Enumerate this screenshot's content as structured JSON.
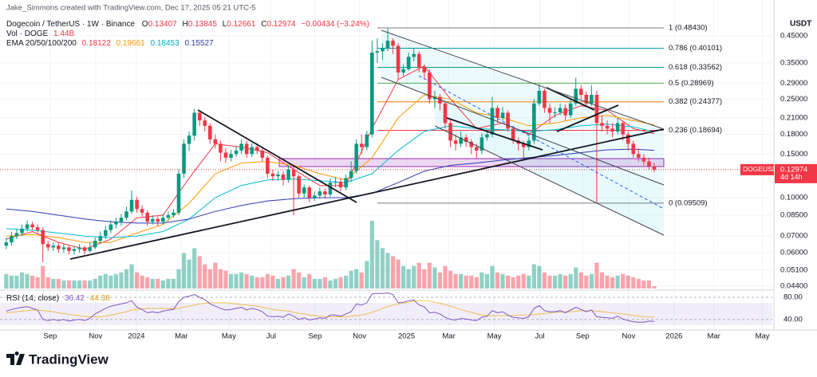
{
  "header": {
    "credit": "Jake_Simmons created with TradingView.com, Dec 17, 2025 05:21 UTC-5",
    "symbol": "Dogecoin / TetherUS · 1W · Binance",
    "ohlc_letters": [
      "O",
      "H",
      "L",
      "C"
    ],
    "change": "−0.00434 (−3.24%)",
    "brand": "TradingView"
  },
  "chart_data": {
    "type": "candlestick",
    "y_unit": "USDT",
    "log_scale": true,
    "up_color": "#089981",
    "down_color": "#f23645",
    "ylim": [
      0.043,
      0.51
    ],
    "yticks": [
      {
        "value": 0.45,
        "label": "0.45000"
      },
      {
        "value": 0.35,
        "label": "0.35000"
      },
      {
        "value": 0.29,
        "label": "0.29000"
      },
      {
        "value": 0.25,
        "label": "0.25000"
      },
      {
        "value": 0.21,
        "label": "0.21000"
      },
      {
        "value": 0.18,
        "label": "0.18000"
      },
      {
        "value": 0.15,
        "label": "0.15000"
      },
      {
        "value": 0.1,
        "label": "0.10000"
      },
      {
        "value": 0.085,
        "label": "0.08500"
      },
      {
        "value": 0.07,
        "label": "0.07000"
      },
      {
        "value": 0.06,
        "label": "0.06000"
      },
      {
        "value": 0.051,
        "label": "0.05100"
      },
      {
        "value": 0.044,
        "label": "0.04400"
      }
    ],
    "xlim": [
      -1.2,
      146.6
    ],
    "xticks": [
      {
        "value": 8.4,
        "label": "Sep"
      },
      {
        "value": 17.1,
        "label": "Nov"
      },
      {
        "value": 24.9,
        "label": "2024"
      },
      {
        "value": 33.5,
        "label": "Mar"
      },
      {
        "value": 42.6,
        "label": "May"
      },
      {
        "value": 50.7,
        "label": "Jul"
      },
      {
        "value": 59.1,
        "label": "Sep"
      },
      {
        "value": 67.6,
        "label": "Nov"
      },
      {
        "value": 76.6,
        "label": "2025"
      },
      {
        "value": 84.7,
        "label": "Mar"
      },
      {
        "value": 93.4,
        "label": "May"
      },
      {
        "value": 102.1,
        "label": "Jul"
      },
      {
        "value": 110.3,
        "label": "Sep"
      },
      {
        "value": 119.1,
        "label": "Nov"
      },
      {
        "value": 127.8,
        "label": "2026"
      },
      {
        "value": 135.4,
        "label": "Mar"
      },
      {
        "value": 144.7,
        "label": "May"
      }
    ],
    "open": [
      0.064,
      0.066,
      0.07,
      0.072,
      0.075,
      0.078,
      0.076,
      0.074,
      0.065,
      0.063,
      0.064,
      0.062,
      0.063,
      0.061,
      0.062,
      0.063,
      0.061,
      0.063,
      0.067,
      0.07,
      0.074,
      0.078,
      0.08,
      0.083,
      0.088,
      0.098,
      0.09,
      0.087,
      0.08,
      0.082,
      0.08,
      0.083,
      0.085,
      0.087,
      0.125,
      0.165,
      0.178,
      0.22,
      0.205,
      0.195,
      0.172,
      0.165,
      0.152,
      0.145,
      0.15,
      0.155,
      0.165,
      0.15,
      0.16,
      0.155,
      0.145,
      0.125,
      0.122,
      0.124,
      0.118,
      0.13,
      0.122,
      0.104,
      0.11,
      0.1,
      0.102,
      0.106,
      0.103,
      0.115,
      0.116,
      0.11,
      0.12,
      0.128,
      0.165,
      0.16,
      0.18,
      0.385,
      0.39,
      0.4,
      0.43,
      0.41,
      0.32,
      0.33,
      0.37,
      0.38,
      0.335,
      0.32,
      0.25,
      0.255,
      0.24,
      0.2,
      0.17,
      0.165,
      0.175,
      0.168,
      0.16,
      0.155,
      0.175,
      0.18,
      0.23,
      0.21,
      0.22,
      0.19,
      0.17,
      0.165,
      0.16,
      0.17,
      0.24,
      0.27,
      0.23,
      0.22,
      0.221,
      0.23,
      0.215,
      0.24,
      0.275,
      0.26,
      0.24,
      0.26,
      0.2,
      0.195,
      0.19,
      0.185,
      0.2,
      0.18,
      0.165,
      0.15,
      0.145,
      0.14,
      0.13407
    ],
    "high": [
      0.069,
      0.073,
      0.075,
      0.078,
      0.081,
      0.08,
      0.078,
      0.076,
      0.067,
      0.066,
      0.066,
      0.065,
      0.064,
      0.064,
      0.065,
      0.064,
      0.066,
      0.069,
      0.073,
      0.077,
      0.081,
      0.083,
      0.086,
      0.092,
      0.107,
      0.101,
      0.093,
      0.089,
      0.085,
      0.084,
      0.086,
      0.088,
      0.09,
      0.13,
      0.172,
      0.185,
      0.228,
      0.225,
      0.212,
      0.2,
      0.18,
      0.17,
      0.158,
      0.156,
      0.162,
      0.172,
      0.17,
      0.166,
      0.166,
      0.158,
      0.148,
      0.13,
      0.128,
      0.128,
      0.135,
      0.134,
      0.124,
      0.113,
      0.112,
      0.106,
      0.11,
      0.109,
      0.12,
      0.121,
      0.12,
      0.124,
      0.14,
      0.172,
      0.18,
      0.186,
      0.43,
      0.44,
      0.42,
      0.4843,
      0.44,
      0.42,
      0.345,
      0.385,
      0.4,
      0.39,
      0.345,
      0.33,
      0.27,
      0.262,
      0.245,
      0.205,
      0.18,
      0.185,
      0.18,
      0.172,
      0.165,
      0.182,
      0.186,
      0.255,
      0.235,
      0.232,
      0.225,
      0.195,
      0.175,
      0.17,
      0.176,
      0.25,
      0.288,
      0.275,
      0.24,
      0.232,
      0.24,
      0.238,
      0.25,
      0.305,
      0.285,
      0.268,
      0.285,
      0.27,
      0.215,
      0.205,
      0.2,
      0.21,
      0.205,
      0.185,
      0.17,
      0.158,
      0.15,
      0.145,
      0.13845
    ],
    "low": [
      0.062,
      0.064,
      0.068,
      0.07,
      0.073,
      0.074,
      0.072,
      0.055,
      0.061,
      0.061,
      0.06,
      0.06,
      0.059,
      0.059,
      0.06,
      0.059,
      0.06,
      0.062,
      0.065,
      0.068,
      0.072,
      0.075,
      0.077,
      0.081,
      0.086,
      0.087,
      0.084,
      0.077,
      0.078,
      0.077,
      0.078,
      0.081,
      0.083,
      0.085,
      0.12,
      0.155,
      0.17,
      0.195,
      0.185,
      0.165,
      0.158,
      0.14,
      0.138,
      0.14,
      0.146,
      0.15,
      0.145,
      0.146,
      0.15,
      0.14,
      0.12,
      0.117,
      0.117,
      0.112,
      0.115,
      0.085,
      0.1,
      0.1,
      0.096,
      0.097,
      0.099,
      0.099,
      0.101,
      0.11,
      0.106,
      0.107,
      0.116,
      0.125,
      0.15,
      0.155,
      0.175,
      0.35,
      0.36,
      0.39,
      0.38,
      0.3,
      0.31,
      0.325,
      0.355,
      0.32,
      0.3,
      0.24,
      0.23,
      0.225,
      0.19,
      0.16,
      0.155,
      0.16,
      0.16,
      0.15,
      0.145,
      0.15,
      0.17,
      0.175,
      0.2,
      0.205,
      0.185,
      0.165,
      0.155,
      0.142,
      0.155,
      0.165,
      0.235,
      0.22,
      0.2,
      0.21,
      0.215,
      0.205,
      0.21,
      0.235,
      0.25,
      0.232,
      0.235,
      0.095,
      0.185,
      0.18,
      0.175,
      0.18,
      0.17,
      0.155,
      0.145,
      0.14,
      0.135,
      0.13,
      0.12661
    ],
    "close": [
      0.066,
      0.07,
      0.072,
      0.075,
      0.078,
      0.076,
      0.074,
      0.065,
      0.063,
      0.064,
      0.062,
      0.063,
      0.061,
      0.062,
      0.063,
      0.061,
      0.063,
      0.067,
      0.07,
      0.074,
      0.078,
      0.08,
      0.083,
      0.088,
      0.098,
      0.09,
      0.087,
      0.08,
      0.082,
      0.08,
      0.083,
      0.085,
      0.087,
      0.125,
      0.165,
      0.178,
      0.22,
      0.205,
      0.195,
      0.172,
      0.165,
      0.152,
      0.145,
      0.15,
      0.155,
      0.165,
      0.15,
      0.16,
      0.155,
      0.145,
      0.125,
      0.122,
      0.124,
      0.118,
      0.13,
      0.122,
      0.104,
      0.11,
      0.1,
      0.102,
      0.106,
      0.103,
      0.115,
      0.116,
      0.11,
      0.12,
      0.128,
      0.165,
      0.16,
      0.18,
      0.385,
      0.39,
      0.4,
      0.43,
      0.41,
      0.32,
      0.33,
      0.37,
      0.38,
      0.335,
      0.32,
      0.25,
      0.255,
      0.24,
      0.2,
      0.17,
      0.165,
      0.175,
      0.168,
      0.16,
      0.155,
      0.175,
      0.18,
      0.23,
      0.21,
      0.22,
      0.19,
      0.17,
      0.165,
      0.16,
      0.17,
      0.24,
      0.27,
      0.23,
      0.22,
      0.221,
      0.23,
      0.215,
      0.24,
      0.275,
      0.26,
      0.24,
      0.26,
      0.2,
      0.195,
      0.19,
      0.185,
      0.2,
      0.18,
      0.165,
      0.15,
      0.145,
      0.14,
      0.13407,
      0.12974
    ],
    "volume": {
      "name": "Vol · DOGE",
      "last_value_label": "1.44B",
      "values": [
        9,
        8,
        8,
        10,
        9,
        8,
        7,
        14,
        7,
        6,
        6,
        5,
        5,
        5,
        5,
        5,
        5,
        6,
        8,
        9,
        8,
        9,
        10,
        12,
        15,
        10,
        8,
        7,
        6,
        6,
        5,
        6,
        6,
        12,
        22,
        18,
        25,
        20,
        15,
        12,
        16,
        12,
        11,
        9,
        9,
        10,
        9,
        8,
        7,
        7,
        9,
        8,
        6,
        7,
        8,
        12,
        10,
        7,
        9,
        6,
        6,
        7,
        5,
        6,
        7,
        8,
        11,
        12,
        10,
        17,
        42,
        30,
        25,
        22,
        20,
        18,
        14,
        12,
        14,
        16,
        12,
        16,
        13,
        10,
        14,
        11,
        9,
        9,
        8,
        8,
        7,
        10,
        9,
        14,
        10,
        9,
        8,
        7,
        8,
        9,
        8,
        15,
        14,
        10,
        8,
        8,
        9,
        8,
        9,
        13,
        10,
        8,
        9,
        16,
        10,
        8,
        7,
        8,
        9,
        8,
        7,
        6,
        5,
        5,
        1.44
      ]
    },
    "overlay_label": "EMA 20/50/100/200",
    "overlays": [
      {
        "color": "#f23645",
        "x": [
          0,
          5,
          10,
          15,
          20,
          25,
          30,
          35,
          40,
          45,
          50,
          55,
          60,
          65,
          70,
          75,
          80,
          85,
          90,
          95,
          100,
          105,
          110,
          115,
          120,
          124
        ],
        "values": [
          0.068,
          0.073,
          0.066,
          0.062,
          0.068,
          0.083,
          0.085,
          0.12,
          0.165,
          0.16,
          0.152,
          0.13,
          0.112,
          0.112,
          0.19,
          0.3,
          0.34,
          0.25,
          0.19,
          0.2,
          0.18,
          0.215,
          0.235,
          0.225,
          0.19,
          0.18122
        ]
      },
      {
        "color": "#ff9800",
        "x": [
          0,
          5,
          10,
          15,
          20,
          25,
          30,
          35,
          40,
          45,
          50,
          55,
          60,
          65,
          70,
          75,
          80,
          85,
          90,
          95,
          100,
          105,
          110,
          115,
          120,
          124
        ],
        "values": [
          0.07,
          0.071,
          0.069,
          0.066,
          0.066,
          0.072,
          0.078,
          0.095,
          0.125,
          0.138,
          0.14,
          0.135,
          0.125,
          0.118,
          0.145,
          0.21,
          0.26,
          0.25,
          0.22,
          0.21,
          0.195,
          0.2,
          0.21,
          0.215,
          0.205,
          0.19661
        ]
      },
      {
        "color": "#00bcd4",
        "x": [
          0,
          5,
          10,
          15,
          20,
          25,
          30,
          35,
          40,
          45,
          50,
          55,
          60,
          65,
          70,
          75,
          80,
          85,
          90,
          95,
          100,
          105,
          110,
          115,
          120,
          124
        ],
        "values": [
          0.075,
          0.074,
          0.072,
          0.07,
          0.069,
          0.07,
          0.073,
          0.082,
          0.1,
          0.112,
          0.118,
          0.119,
          0.117,
          0.115,
          0.125,
          0.155,
          0.185,
          0.195,
          0.19,
          0.188,
          0.185,
          0.188,
          0.195,
          0.198,
          0.193,
          0.18453
        ]
      },
      {
        "color": "#2f3ab2",
        "x": [
          0,
          5,
          10,
          15,
          20,
          25,
          30,
          35,
          40,
          45,
          50,
          55,
          60,
          65,
          70,
          75,
          80,
          85,
          90,
          95,
          100,
          105,
          110,
          115,
          120,
          124
        ],
        "values": [
          0.09,
          0.088,
          0.085,
          0.082,
          0.08,
          0.079,
          0.079,
          0.082,
          0.088,
          0.093,
          0.097,
          0.099,
          0.1,
          0.1,
          0.104,
          0.115,
          0.128,
          0.135,
          0.138,
          0.142,
          0.145,
          0.148,
          0.152,
          0.156,
          0.157,
          0.15527
        ]
      }
    ],
    "fib_levels": [
      {
        "label": "1 (0.48430)",
        "value": 0.4843,
        "color": "#787b86"
      },
      {
        "label": "0.786 (0.40101)",
        "value": 0.40101,
        "color": "#0097a7"
      },
      {
        "label": "0.618 (0.33562)",
        "value": 0.33562,
        "color": "#089981"
      },
      {
        "label": "0.5 (0.28969)",
        "value": 0.28969,
        "color": "#4caf50"
      },
      {
        "label": "0.382 (0.24377)",
        "value": 0.24377,
        "color": "#f57c00"
      },
      {
        "label": "0.236 (0.18694)",
        "value": 0.18694,
        "color": "#f23645"
      },
      {
        "label": "0 (0.09509)",
        "value": 0.09509,
        "color": "#787b86"
      }
    ],
    "last_price": {
      "symbol": "DOGEUSDT",
      "countdown": "4d 14h"
    },
    "rsi": {
      "label": "RSI (14, close)",
      "ylim": [
        24,
        90
      ],
      "yticks": [
        {
          "value": 80,
          "label": "80.00"
        },
        {
          "value": 40,
          "label": "40.00"
        }
      ],
      "series": [
        {
          "color": "#7e57c2",
          "values": [
            55,
            58,
            60,
            62,
            63,
            60,
            57,
            40,
            38,
            40,
            38,
            40,
            37,
            39,
            40,
            38,
            42,
            50,
            55,
            60,
            64,
            66,
            68,
            70,
            74,
            62,
            58,
            52,
            54,
            52,
            55,
            57,
            58,
            72,
            80,
            82,
            85,
            80,
            76,
            68,
            64,
            60,
            57,
            58,
            60,
            62,
            57,
            60,
            58,
            54,
            46,
            45,
            46,
            44,
            50,
            46,
            40,
            43,
            39,
            41,
            43,
            42,
            48,
            48,
            46,
            50,
            54,
            68,
            66,
            70,
            86,
            87,
            87,
            88,
            85,
            70,
            71,
            74,
            75,
            66,
            63,
            52,
            53,
            50,
            44,
            40,
            39,
            42,
            41,
            39,
            38,
            44,
            46,
            56,
            52,
            54,
            48,
            44,
            43,
            42,
            45,
            60,
            65,
            56,
            54,
            54,
            56,
            52,
            57,
            62,
            58,
            54,
            57,
            45,
            44,
            43,
            42,
            46,
            41,
            38,
            36,
            35,
            35,
            37,
            36.42
          ]
        },
        {
          "color": "#f7c948",
          "values": [
            52,
            53,
            54,
            55,
            56,
            57,
            57,
            56,
            55,
            54,
            52,
            51,
            49,
            48,
            47,
            46,
            45,
            45,
            45,
            46,
            48,
            50,
            52,
            54,
            57,
            58,
            59,
            60,
            60,
            60,
            60,
            60,
            59,
            60,
            62,
            64,
            66,
            68,
            69,
            70,
            70,
            70,
            70,
            69,
            68,
            67,
            66,
            65,
            64,
            62,
            60,
            58,
            57,
            56,
            55,
            53,
            51,
            50,
            48,
            47,
            46,
            45,
            45,
            45,
            45,
            45,
            46,
            47,
            48,
            50,
            53,
            56,
            60,
            63,
            66,
            68,
            69,
            71,
            73,
            74,
            74,
            73,
            71,
            69,
            67,
            64,
            61,
            58,
            55,
            53,
            50,
            48,
            47,
            47,
            47,
            47,
            47,
            47,
            48,
            48,
            48,
            49,
            50,
            51,
            52,
            53,
            53,
            54,
            54,
            55,
            56,
            56,
            56,
            55,
            54,
            53,
            52,
            51,
            50,
            49,
            47,
            46,
            45,
            44.5,
            44.38
          ]
        }
      ]
    }
  }
}
